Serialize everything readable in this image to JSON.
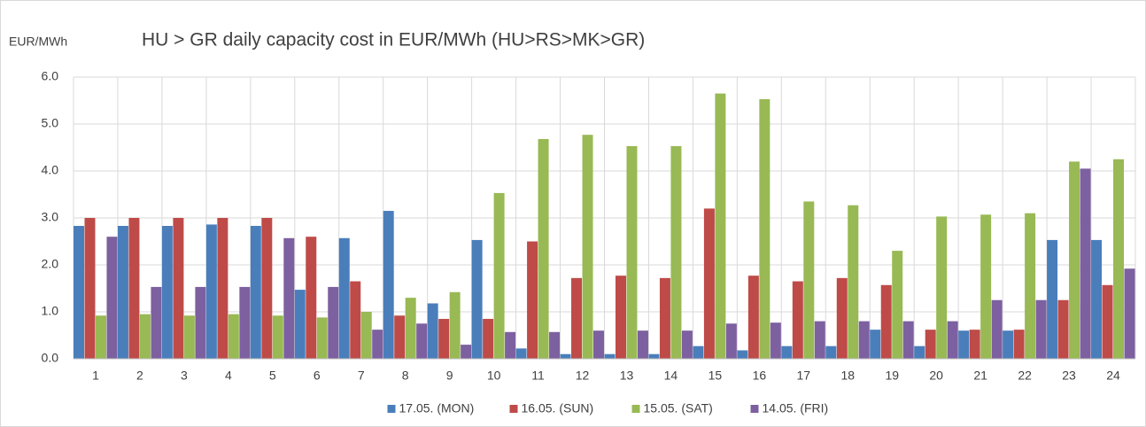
{
  "chart_data": {
    "type": "bar",
    "title": "HU > GR daily capacity cost in EUR/MWh (HU>RS>MK>GR)",
    "y_label": "EUR/MWh",
    "categories": [
      "1",
      "2",
      "3",
      "4",
      "5",
      "6",
      "7",
      "8",
      "9",
      "10",
      "11",
      "12",
      "13",
      "14",
      "15",
      "16",
      "17",
      "18",
      "19",
      "20",
      "21",
      "22",
      "23",
      "24"
    ],
    "series": [
      {
        "name": "17.05. (MON)",
        "color": "#4a7ebb",
        "values": [
          2.83,
          2.83,
          2.83,
          2.86,
          2.83,
          1.47,
          2.57,
          3.15,
          1.18,
          2.53,
          0.22,
          0.1,
          0.1,
          0.1,
          0.27,
          0.18,
          0.27,
          0.27,
          0.62,
          0.27,
          0.6,
          0.6,
          2.53,
          2.53
        ]
      },
      {
        "name": "16.05. (SUN)",
        "color": "#be4b48",
        "values": [
          3.0,
          3.0,
          3.0,
          3.0,
          3.0,
          2.6,
          1.65,
          0.92,
          0.85,
          0.85,
          2.5,
          1.72,
          1.77,
          1.72,
          3.2,
          1.77,
          1.65,
          1.72,
          1.57,
          0.62,
          0.62,
          0.62,
          1.25,
          1.57
        ]
      },
      {
        "name": "15.05. (SAT)",
        "color": "#98b954",
        "values": [
          0.92,
          0.95,
          0.92,
          0.95,
          0.92,
          0.88,
          1.0,
          1.3,
          1.42,
          3.53,
          4.68,
          4.77,
          4.53,
          4.53,
          5.65,
          5.53,
          3.35,
          3.27,
          2.3,
          3.03,
          3.07,
          3.1,
          4.2,
          4.25
        ]
      },
      {
        "name": "14.05. (FRI)",
        "color": "#7d60a0",
        "values": [
          2.6,
          1.53,
          1.53,
          1.53,
          2.57,
          1.53,
          0.62,
          0.75,
          0.3,
          0.57,
          0.57,
          0.6,
          0.6,
          0.6,
          0.75,
          0.77,
          0.8,
          0.8,
          0.8,
          0.8,
          1.25,
          1.25,
          4.05,
          1.92
        ]
      }
    ],
    "ylim": [
      0,
      6
    ],
    "yticks": [
      {
        "value": 0,
        "label": "0.0"
      },
      {
        "value": 1,
        "label": "1.0"
      },
      {
        "value": 2,
        "label": "2.0"
      },
      {
        "value": 3,
        "label": "3.0"
      },
      {
        "value": 4,
        "label": "4.0"
      },
      {
        "value": 5,
        "label": "5.0"
      },
      {
        "value": 6,
        "label": "6.0"
      }
    ],
    "grid": true,
    "legend": "bottom"
  }
}
